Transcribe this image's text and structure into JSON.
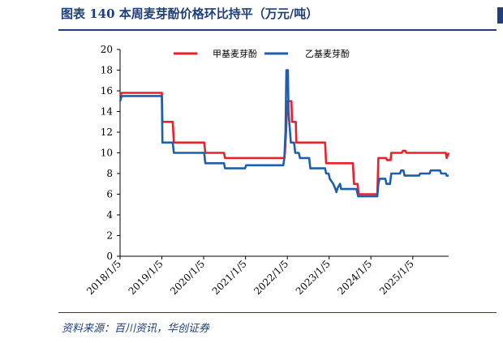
{
  "figure": {
    "title": "图表 140   本周麦芽酚价格环比持平（万元/吨）",
    "source": "资料来源：百川资讯，华创证券"
  },
  "chart_data": {
    "type": "line",
    "x_axis": {
      "type": "date",
      "range": [
        "2018-01-05",
        "2025-11-14"
      ],
      "tick_dates": [
        "2018-01-05",
        "2019-01-05",
        "2020-01-05",
        "2021-01-05",
        "2022-01-05",
        "2023-01-05",
        "2024-01-05",
        "2025-01-05"
      ],
      "tick_labels": [
        "2018/1/5",
        "2019/1/5",
        "2020/1/5",
        "2021/1/5",
        "2022/1/5",
        "2023/1/5",
        "2024/1/5",
        "2025/1/5"
      ]
    },
    "y_axis": {
      "range": [
        0,
        20
      ],
      "ticks": [
        0,
        2,
        4,
        6,
        8,
        10,
        12,
        14,
        16,
        18,
        20
      ]
    },
    "legend_position": "top",
    "grid": false,
    "series": [
      {
        "name": "甲基麦芽酚",
        "color": "#e8212a",
        "points": [
          [
            "2018-01-05",
            15.5
          ],
          [
            "2018-01-20",
            15.8
          ],
          [
            "2019-01-05",
            15.8
          ],
          [
            "2019-01-10",
            13.0
          ],
          [
            "2019-04-10",
            13.0
          ],
          [
            "2019-04-20",
            11.0
          ],
          [
            "2020-01-10",
            11.0
          ],
          [
            "2020-01-20",
            10.0
          ],
          [
            "2020-07-01",
            10.0
          ],
          [
            "2020-07-10",
            9.5
          ],
          [
            "2021-12-10",
            9.5
          ],
          [
            "2021-12-15",
            10.0
          ],
          [
            "2021-12-25",
            12.0
          ],
          [
            "2022-01-05",
            15.0
          ],
          [
            "2022-02-10",
            15.0
          ],
          [
            "2022-02-15",
            13.0
          ],
          [
            "2022-03-20",
            13.0
          ],
          [
            "2022-03-25",
            11.0
          ],
          [
            "2022-12-01",
            11.0
          ],
          [
            "2022-12-10",
            9.0
          ],
          [
            "2023-08-01",
            9.0
          ],
          [
            "2023-08-10",
            7.0
          ],
          [
            "2023-09-10",
            7.0
          ],
          [
            "2023-09-20",
            6.0
          ],
          [
            "2024-03-01",
            6.0
          ],
          [
            "2024-03-10",
            9.5
          ],
          [
            "2024-05-15",
            9.5
          ],
          [
            "2024-05-25",
            9.3
          ],
          [
            "2024-06-25",
            9.3
          ],
          [
            "2024-07-01",
            10.0
          ],
          [
            "2024-10-01",
            10.0
          ],
          [
            "2024-10-10",
            10.2
          ],
          [
            "2024-11-01",
            10.2
          ],
          [
            "2024-11-10",
            10.0
          ],
          [
            "2025-10-20",
            10.0
          ],
          [
            "2025-10-28",
            9.5
          ],
          [
            "2025-11-14",
            10.0
          ]
        ]
      },
      {
        "name": "乙基麦芽酚",
        "color": "#1f5faa",
        "points": [
          [
            "2018-01-05",
            15.0
          ],
          [
            "2018-01-20",
            15.5
          ],
          [
            "2019-01-05",
            15.5
          ],
          [
            "2019-01-10",
            11.0
          ],
          [
            "2019-04-10",
            11.0
          ],
          [
            "2019-04-20",
            10.0
          ],
          [
            "2020-01-10",
            10.0
          ],
          [
            "2020-01-20",
            9.0
          ],
          [
            "2020-07-01",
            9.0
          ],
          [
            "2020-07-10",
            8.5
          ],
          [
            "2021-01-01",
            8.5
          ],
          [
            "2021-01-10",
            8.8
          ],
          [
            "2021-08-01",
            8.8
          ],
          [
            "2021-08-15",
            8.8
          ],
          [
            "2021-12-01",
            8.8
          ],
          [
            "2021-12-10",
            9.5
          ],
          [
            "2021-12-20",
            12.0
          ],
          [
            "2021-12-28",
            18.0
          ],
          [
            "2022-01-10",
            18.0
          ],
          [
            "2022-01-15",
            14.0
          ],
          [
            "2022-02-05",
            11.0
          ],
          [
            "2022-03-05",
            11.0
          ],
          [
            "2022-03-15",
            10.0
          ],
          [
            "2022-04-15",
            10.0
          ],
          [
            "2022-04-25",
            9.5
          ],
          [
            "2022-07-15",
            9.5
          ],
          [
            "2022-07-25",
            8.5
          ],
          [
            "2022-12-01",
            8.5
          ],
          [
            "2022-12-10",
            8.0
          ],
          [
            "2023-01-01",
            8.0
          ],
          [
            "2023-01-10",
            7.5
          ],
          [
            "2023-02-10",
            7.0
          ],
          [
            "2023-03-01",
            6.5
          ],
          [
            "2023-03-10",
            6.2
          ],
          [
            "2023-03-20",
            6.6
          ],
          [
            "2023-04-10",
            7.0
          ],
          [
            "2023-04-20",
            6.5
          ],
          [
            "2023-09-01",
            6.5
          ],
          [
            "2023-09-15",
            5.8
          ],
          [
            "2024-03-01",
            5.8
          ],
          [
            "2024-03-10",
            7.0
          ],
          [
            "2024-03-20",
            7.5
          ],
          [
            "2024-05-10",
            7.5
          ],
          [
            "2024-05-20",
            7.0
          ],
          [
            "2024-06-20",
            7.0
          ],
          [
            "2024-07-01",
            8.0
          ],
          [
            "2024-09-15",
            8.0
          ],
          [
            "2024-09-25",
            8.3
          ],
          [
            "2024-10-15",
            8.3
          ],
          [
            "2024-10-25",
            7.8
          ],
          [
            "2025-03-01",
            7.8
          ],
          [
            "2025-03-10",
            8.0
          ],
          [
            "2025-06-01",
            8.0
          ],
          [
            "2025-06-10",
            8.3
          ],
          [
            "2025-09-01",
            8.3
          ],
          [
            "2025-09-10",
            8.0
          ],
          [
            "2025-10-20",
            8.0
          ],
          [
            "2025-10-28",
            7.8
          ],
          [
            "2025-11-14",
            7.8
          ]
        ]
      }
    ]
  }
}
